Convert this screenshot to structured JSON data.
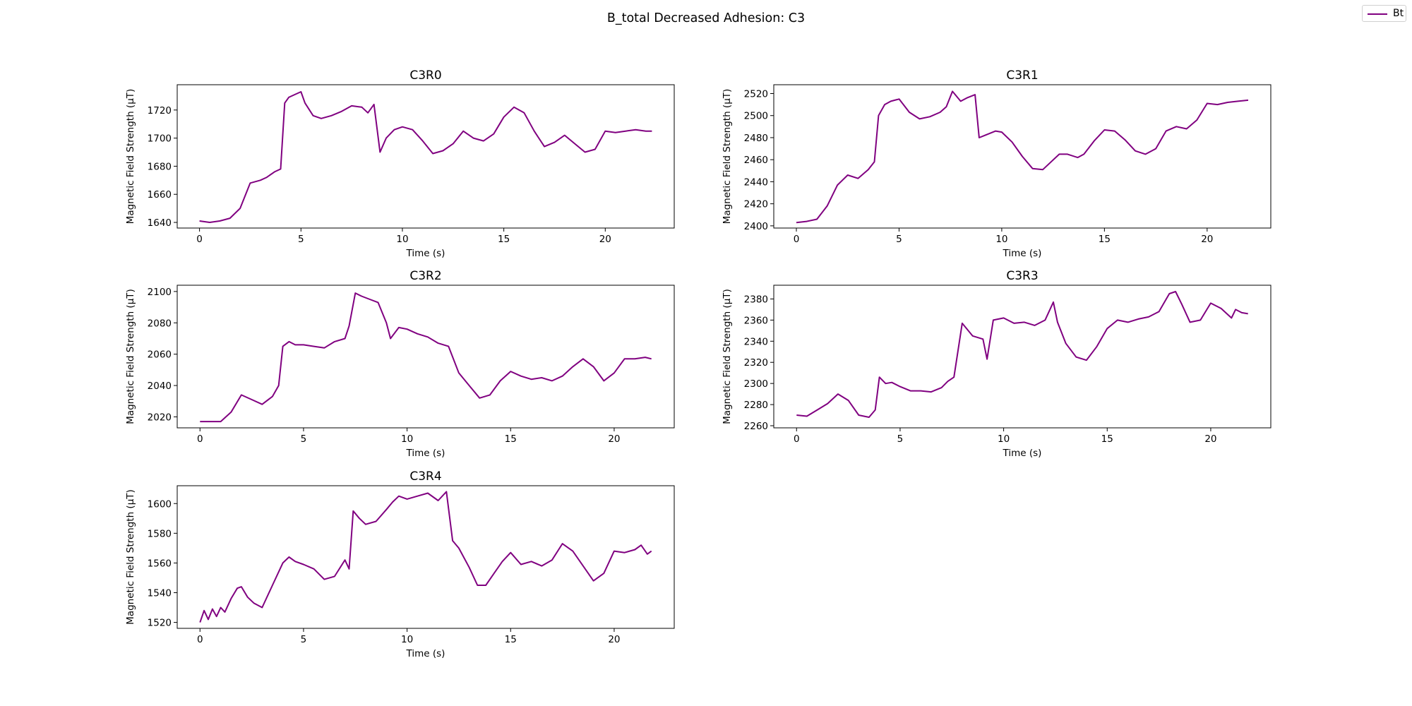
{
  "figure": {
    "title": "B_total Decreased Adhesion: C3",
    "line_color": "#800080",
    "legend_label": "Bt"
  },
  "chart_data": [
    {
      "type": "line",
      "title": "C3R0",
      "xlabel": "Time (s)",
      "ylabel": "Magnetic Field Strength (μT)",
      "xlim": [
        -1.1,
        23.4
      ],
      "ylim": [
        1636,
        1738
      ],
      "xticks": [
        0,
        5,
        10,
        15,
        20
      ],
      "yticks": [
        1640,
        1660,
        1680,
        1700,
        1720
      ],
      "grid": false,
      "series": [
        {
          "name": "Bt",
          "x": [
            0,
            0.5,
            1.0,
            1.5,
            2.0,
            2.5,
            3.0,
            3.3,
            3.7,
            4.0,
            4.2,
            4.4,
            4.7,
            5.0,
            5.2,
            5.6,
            6.0,
            6.5,
            7.0,
            7.5,
            8.0,
            8.3,
            8.6,
            8.9,
            9.2,
            9.6,
            10.0,
            10.5,
            11.0,
            11.5,
            12.0,
            12.5,
            13.0,
            13.5,
            14.0,
            14.5,
            15.0,
            15.5,
            16.0,
            16.5,
            17.0,
            17.5,
            18.0,
            18.5,
            19.0,
            19.5,
            20.0,
            20.5,
            21.0,
            21.5,
            22.0,
            22.3
          ],
          "values": [
            1641,
            1640,
            1641,
            1643,
            1650,
            1668,
            1670,
            1672,
            1676,
            1678,
            1725,
            1729,
            1731,
            1733,
            1725,
            1716,
            1714,
            1716,
            1719,
            1723,
            1722,
            1718,
            1724,
            1690,
            1700,
            1706,
            1708,
            1706,
            1698,
            1689,
            1691,
            1696,
            1705,
            1700,
            1698,
            1703,
            1715,
            1722,
            1718,
            1705,
            1694,
            1697,
            1702,
            1696,
            1690,
            1692,
            1705,
            1704,
            1705,
            1706,
            1705,
            1705
          ]
        }
      ]
    },
    {
      "type": "line",
      "title": "C3R1",
      "xlabel": "Time (s)",
      "ylabel": "Magnetic Field Strength (μT)",
      "xlim": [
        -1.1,
        23.1
      ],
      "ylim": [
        2398,
        2528
      ],
      "xticks": [
        0,
        5,
        10,
        15,
        20
      ],
      "yticks": [
        2400,
        2420,
        2440,
        2460,
        2480,
        2500,
        2520
      ],
      "grid": false,
      "series": [
        {
          "name": "Bt",
          "x": [
            0,
            0.5,
            1.0,
            1.5,
            2.0,
            2.5,
            3.0,
            3.5,
            3.8,
            4.0,
            4.3,
            4.6,
            5.0,
            5.5,
            6.0,
            6.5,
            7.0,
            7.3,
            7.6,
            8.0,
            8.3,
            8.7,
            8.9,
            9.3,
            9.7,
            10.0,
            10.5,
            11.0,
            11.5,
            12.0,
            12.4,
            12.8,
            13.2,
            13.7,
            14.0,
            14.5,
            15.0,
            15.5,
            16.0,
            16.5,
            17.0,
            17.5,
            18.0,
            18.5,
            19.0,
            19.5,
            20.0,
            20.5,
            21.0,
            21.5,
            22.0
          ],
          "values": [
            2403,
            2404,
            2406,
            2418,
            2437,
            2446,
            2443,
            2451,
            2458,
            2500,
            2510,
            2513,
            2515,
            2503,
            2497,
            2499,
            2503,
            2508,
            2522,
            2513,
            2516,
            2519,
            2480,
            2483,
            2486,
            2485,
            2476,
            2463,
            2452,
            2451,
            2458,
            2465,
            2465,
            2462,
            2465,
            2477,
            2487,
            2486,
            2478,
            2468,
            2465,
            2470,
            2486,
            2490,
            2488,
            2496,
            2511,
            2510,
            2512,
            2513,
            2514
          ]
        }
      ]
    },
    {
      "type": "line",
      "title": "C3R2",
      "xlabel": "Time (s)",
      "ylabel": "Magnetic Field Strength (μT)",
      "xlim": [
        -1.1,
        22.9
      ],
      "ylim": [
        2013,
        2104
      ],
      "xticks": [
        0,
        5,
        10,
        15,
        20
      ],
      "yticks": [
        2020,
        2040,
        2060,
        2080,
        2100
      ],
      "grid": false,
      "series": [
        {
          "name": "Bt",
          "x": [
            0,
            0.5,
            1.0,
            1.5,
            2.0,
            2.5,
            3.0,
            3.5,
            3.8,
            4.0,
            4.3,
            4.6,
            5.0,
            5.5,
            6.0,
            6.5,
            7.0,
            7.2,
            7.5,
            7.8,
            8.2,
            8.6,
            9.0,
            9.2,
            9.6,
            10.0,
            10.5,
            11.0,
            11.5,
            12.0,
            12.5,
            13.0,
            13.5,
            14.0,
            14.5,
            15.0,
            15.5,
            16.0,
            16.5,
            17.0,
            17.5,
            18.0,
            18.5,
            19.0,
            19.5,
            20.0,
            20.5,
            21.0,
            21.5,
            21.8
          ],
          "values": [
            2017,
            2017,
            2017,
            2023,
            2034,
            2031,
            2028,
            2033,
            2040,
            2065,
            2068,
            2066,
            2066,
            2065,
            2064,
            2068,
            2070,
            2078,
            2099,
            2097,
            2095,
            2093,
            2080,
            2070,
            2077,
            2076,
            2073,
            2071,
            2067,
            2065,
            2048,
            2040,
            2032,
            2034,
            2043,
            2049,
            2046,
            2044,
            2045,
            2043,
            2046,
            2052,
            2057,
            2052,
            2043,
            2048,
            2057,
            2057,
            2058,
            2057
          ]
        }
      ]
    },
    {
      "type": "line",
      "title": "C3R3",
      "xlabel": "Time (s)",
      "ylabel": "Magnetic Field Strength (μT)",
      "xlim": [
        -1.1,
        22.9
      ],
      "ylim": [
        2258,
        2393
      ],
      "xticks": [
        0,
        5,
        10,
        15,
        20
      ],
      "yticks": [
        2260,
        2280,
        2300,
        2320,
        2340,
        2360,
        2380
      ],
      "grid": false,
      "series": [
        {
          "name": "Bt",
          "x": [
            0,
            0.5,
            1.0,
            1.5,
            2.0,
            2.5,
            3.0,
            3.5,
            3.8,
            4.0,
            4.3,
            4.6,
            5.0,
            5.5,
            6.0,
            6.5,
            7.0,
            7.3,
            7.6,
            8.0,
            8.5,
            9.0,
            9.2,
            9.5,
            10.0,
            10.5,
            11.0,
            11.5,
            12.0,
            12.4,
            12.6,
            13.0,
            13.5,
            14.0,
            14.5,
            15.0,
            15.5,
            16.0,
            16.5,
            17.0,
            17.5,
            18.0,
            18.3,
            18.6,
            19.0,
            19.5,
            20.0,
            20.5,
            21.0,
            21.2,
            21.5,
            21.8
          ],
          "values": [
            2270,
            2269,
            2275,
            2281,
            2290,
            2284,
            2270,
            2268,
            2275,
            2306,
            2300,
            2301,
            2297,
            2293,
            2293,
            2292,
            2296,
            2302,
            2306,
            2357,
            2345,
            2342,
            2323,
            2360,
            2362,
            2357,
            2358,
            2355,
            2360,
            2377,
            2358,
            2338,
            2325,
            2322,
            2335,
            2352,
            2360,
            2358,
            2361,
            2363,
            2368,
            2385,
            2387,
            2375,
            2358,
            2360,
            2376,
            2371,
            2362,
            2370,
            2367,
            2366
          ]
        }
      ]
    },
    {
      "type": "line",
      "title": "C3R4",
      "xlabel": "Time (s)",
      "ylabel": "Magnetic Field Strength (μT)",
      "xlim": [
        -1.1,
        22.9
      ],
      "ylim": [
        1516,
        1612
      ],
      "xticks": [
        0,
        5,
        10,
        15,
        20
      ],
      "yticks": [
        1520,
        1540,
        1560,
        1580,
        1600
      ],
      "grid": false,
      "series": [
        {
          "name": "Bt",
          "x": [
            0,
            0.2,
            0.4,
            0.6,
            0.8,
            1.0,
            1.2,
            1.5,
            1.8,
            2.0,
            2.3,
            2.6,
            3.0,
            3.5,
            4.0,
            4.3,
            4.6,
            5.0,
            5.5,
            6.0,
            6.5,
            7.0,
            7.2,
            7.4,
            7.7,
            8.0,
            8.5,
            9.0,
            9.3,
            9.6,
            10.0,
            10.5,
            11.0,
            11.5,
            11.9,
            12.2,
            12.5,
            13.0,
            13.4,
            13.8,
            14.2,
            14.6,
            15.0,
            15.5,
            16.0,
            16.5,
            17.0,
            17.5,
            18.0,
            18.5,
            19.0,
            19.5,
            20.0,
            20.5,
            21.0,
            21.3,
            21.6,
            21.8
          ],
          "values": [
            1520,
            1528,
            1522,
            1529,
            1524,
            1530,
            1527,
            1536,
            1543,
            1544,
            1537,
            1533,
            1530,
            1545,
            1560,
            1564,
            1561,
            1559,
            1556,
            1549,
            1551,
            1562,
            1556,
            1595,
            1590,
            1586,
            1588,
            1596,
            1601,
            1605,
            1603,
            1605,
            1607,
            1602,
            1608,
            1575,
            1570,
            1557,
            1545,
            1545,
            1553,
            1561,
            1567,
            1559,
            1561,
            1558,
            1562,
            1573,
            1568,
            1558,
            1548,
            1553,
            1568,
            1567,
            1569,
            1572,
            1566,
            1568
          ]
        }
      ]
    }
  ]
}
